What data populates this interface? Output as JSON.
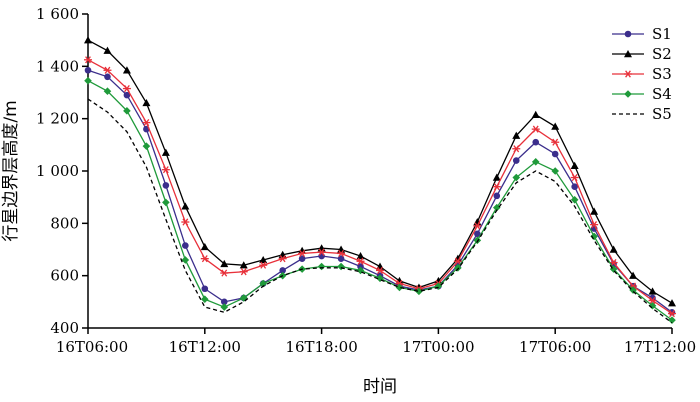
{
  "chart_data": {
    "type": "line",
    "xlabel": "时间",
    "ylabel": "行星边界层高度/m",
    "ylim": [
      400,
      1600
    ],
    "yticks": [
      400,
      600,
      800,
      1000,
      1200,
      1400,
      1600
    ],
    "ytick_labels": [
      "400",
      "600",
      "800",
      "1 000",
      "1 200",
      "1 400",
      "1 600"
    ],
    "xlim": [
      0,
      30
    ],
    "xticks": [
      0,
      6,
      12,
      18,
      24,
      30
    ],
    "xtick_labels": [
      "16T06:00",
      "16T12:00",
      "16T18:00",
      "17T00:00",
      "17T06:00",
      "17T12:00"
    ],
    "grid": false,
    "legend_position": "top-right",
    "x": [
      0,
      1,
      2,
      3,
      4,
      5,
      6,
      7,
      8,
      9,
      10,
      11,
      12,
      13,
      14,
      15,
      16,
      17,
      18,
      19,
      20,
      21,
      22,
      23,
      24,
      25,
      26,
      27,
      28,
      29,
      30
    ],
    "series": [
      {
        "name": "S1",
        "color": "#3b2e8c",
        "marker": "circle",
        "dashed": false,
        "values": [
          1385,
          1360,
          1290,
          1160,
          945,
          715,
          550,
          500,
          515,
          570,
          620,
          665,
          675,
          665,
          635,
          600,
          560,
          545,
          560,
          640,
          760,
          905,
          1040,
          1110,
          1065,
          940,
          780,
          645,
          560,
          515,
          460
        ]
      },
      {
        "name": "S2",
        "color": "#000000",
        "marker": "triangle",
        "dashed": false,
        "values": [
          1500,
          1460,
          1385,
          1260,
          1070,
          865,
          710,
          645,
          640,
          660,
          680,
          695,
          705,
          700,
          675,
          635,
          580,
          555,
          580,
          665,
          805,
          975,
          1135,
          1215,
          1170,
          1020,
          845,
          700,
          600,
          540,
          495
        ]
      },
      {
        "name": "S3",
        "color": "#e8303a",
        "marker": "asterisk",
        "dashed": false,
        "values": [
          1425,
          1385,
          1315,
          1185,
          1005,
          805,
          665,
          610,
          615,
          640,
          665,
          685,
          690,
          685,
          655,
          620,
          570,
          550,
          570,
          655,
          790,
          940,
          1085,
          1160,
          1110,
          975,
          795,
          650,
          560,
          505,
          455
        ]
      },
      {
        "name": "S4",
        "color": "#1f9a3a",
        "marker": "diamond",
        "dashed": false,
        "values": [
          1345,
          1305,
          1230,
          1095,
          880,
          660,
          510,
          480,
          515,
          570,
          600,
          625,
          635,
          635,
          620,
          590,
          555,
          540,
          560,
          630,
          735,
          860,
          975,
          1035,
          1000,
          890,
          750,
          625,
          545,
          485,
          430
        ]
      },
      {
        "name": "S5",
        "color": "#000000",
        "marker": "none",
        "dashed": true,
        "values": [
          1275,
          1225,
          1150,
          1015,
          815,
          620,
          480,
          460,
          500,
          560,
          600,
          625,
          630,
          630,
          615,
          585,
          555,
          540,
          555,
          625,
          730,
          850,
          955,
          1000,
          960,
          865,
          735,
          620,
          540,
          475,
          420
        ]
      }
    ]
  }
}
